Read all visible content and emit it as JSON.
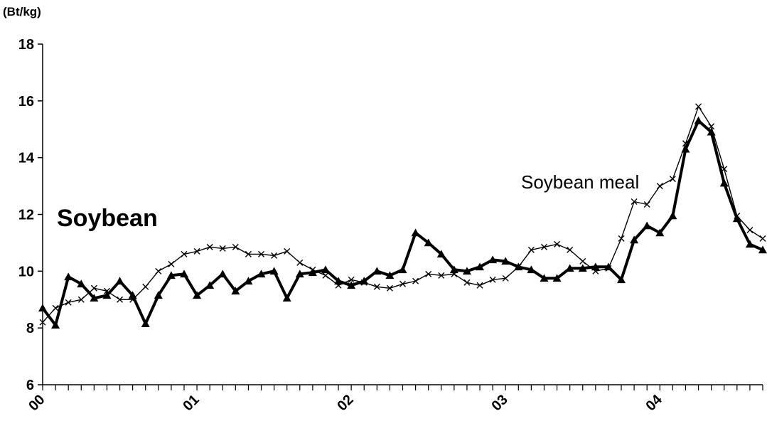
{
  "chart_data": {
    "type": "line",
    "title": "",
    "y_unit": "(Bt/kg)",
    "xlabel": "",
    "ylabel": "",
    "ylim": [
      6,
      18
    ],
    "yticks": [
      6,
      8,
      10,
      12,
      14,
      16,
      18
    ],
    "x_tick_labels": [
      "00",
      "01",
      "02",
      "03",
      "04"
    ],
    "months_per_year": 12,
    "grid": false,
    "series": [
      {
        "name": "Soybean",
        "style": "thick",
        "marker": "triangle",
        "color": "#000000",
        "values": [
          8.7,
          8.1,
          9.8,
          9.55,
          9.05,
          9.15,
          9.65,
          9.15,
          8.15,
          9.15,
          9.85,
          9.9,
          9.15,
          9.5,
          9.9,
          9.3,
          9.65,
          9.9,
          10.0,
          9.05,
          9.9,
          9.95,
          10.05,
          9.65,
          9.5,
          9.65,
          10.0,
          9.85,
          10.05,
          11.35,
          11.0,
          10.6,
          10.05,
          10.0,
          10.15,
          10.4,
          10.35,
          10.15,
          10.05,
          9.75,
          9.75,
          10.1,
          10.1,
          10.15,
          10.15,
          9.7,
          11.1,
          11.6,
          11.35,
          11.95,
          14.3,
          15.3,
          14.9,
          13.1,
          11.85,
          10.95,
          10.75
        ]
      },
      {
        "name": "Soybean meal",
        "style": "thin",
        "marker": "cross",
        "color": "#000000",
        "values": [
          8.2,
          8.7,
          8.9,
          9.0,
          9.4,
          9.3,
          9.0,
          9.0,
          9.45,
          10.0,
          10.25,
          10.6,
          10.7,
          10.85,
          10.8,
          10.85,
          10.6,
          10.6,
          10.55,
          10.7,
          10.3,
          10.05,
          9.85,
          9.5,
          9.7,
          9.6,
          9.45,
          9.4,
          9.55,
          9.65,
          9.9,
          9.85,
          9.9,
          9.6,
          9.5,
          9.7,
          9.75,
          10.15,
          10.75,
          10.85,
          10.95,
          10.75,
          10.35,
          10.0,
          10.1,
          11.15,
          12.45,
          12.35,
          13.0,
          13.25,
          14.5,
          15.8,
          15.1,
          13.6,
          11.95,
          11.45,
          11.15
        ]
      }
    ]
  }
}
